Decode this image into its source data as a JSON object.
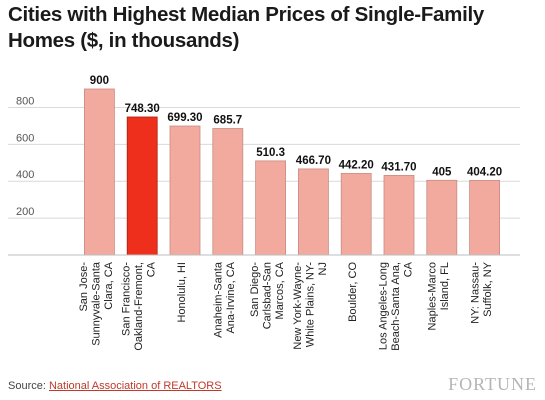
{
  "chart_data": {
    "type": "bar",
    "title": "Cities with Highest Median Prices of Single-Family Homes ($, in thousands)",
    "categories": [
      "San Jose-Sunnyvale-Santa Clara, CA",
      "San Francisco-Oakland-Fremont, CA",
      "Honolulu, HI",
      "Anaheim-Santa Ana-Irvine, CA",
      "San Diego-Carlsbad-San Marcos, CA",
      "New York-Wayne-White Plains, NY-NJ",
      "Boulder, CO",
      "Los Angeles-Long Beach-Santa Ana, CA",
      "Naples-Marco Island, FL",
      "NY: Nassau-Suffolk, NY"
    ],
    "category_lines": [
      [
        "San Jose-",
        "Sunnyvale-Santa",
        "Clara, CA"
      ],
      [
        "San Francisco-",
        "Oakland-Fremont,",
        "CA"
      ],
      [
        "Honolulu, HI"
      ],
      [
        "Anaheim-Santa",
        "Ana-Irvine, CA"
      ],
      [
        "San Diego-",
        "Carlsbad-San",
        "Marcos, CA"
      ],
      [
        "New York-Wayne-",
        "White Plains, NY-",
        "NJ"
      ],
      [
        "Boulder, CO"
      ],
      [
        "Los Angeles-Long",
        "Beach-Santa Ana,",
        "CA"
      ],
      [
        "Naples-Marco",
        "Island, FL"
      ],
      [
        "NY: Nassau-",
        "Suffolk, NY"
      ]
    ],
    "values": [
      900,
      748.3,
      699.3,
      685.7,
      510.3,
      466.7,
      442.2,
      431.7,
      405,
      404.2
    ],
    "data_labels": [
      "900",
      "748.30",
      "699.30",
      "685.7",
      "510.3",
      "466.70",
      "442.20",
      "431.70",
      "405",
      "404.20"
    ],
    "highlight_index": 1,
    "yticks": [
      200,
      400,
      600,
      800
    ],
    "ylim": [
      0,
      900
    ],
    "grid": true,
    "colors": {
      "bar": "#f2aa9f",
      "bar_stroke": "#c98b82",
      "highlight": "#ee2f1b",
      "highlight_stroke": "#b01e10",
      "grid": "#d9d9d9"
    }
  },
  "footer": {
    "source_prefix": "Source: ",
    "source_link": "National Association of REALTORS",
    "logo": "FORTUNE"
  }
}
